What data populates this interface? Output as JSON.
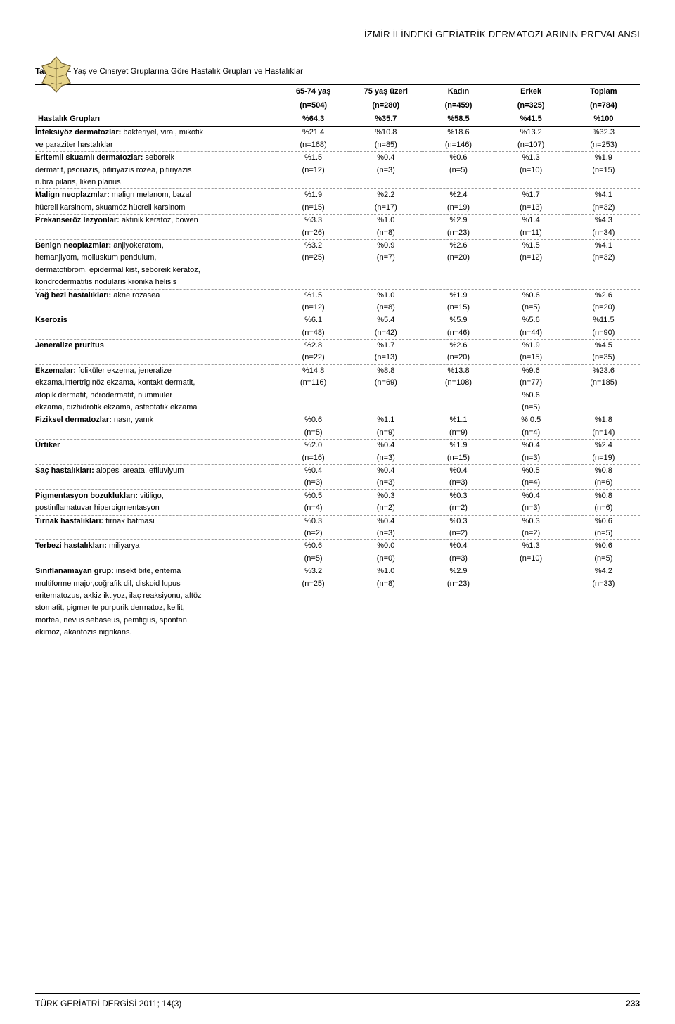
{
  "header": {
    "title": "İZMİR İLİNDEKİ GERİATRİK DERMATOZLARININ PREVALANSI"
  },
  "table": {
    "caption_label": "Tablo 1—",
    "caption_text": " Yaş ve Cinsiyet Gruplarına Göre Hastalık Grupları ve Hastalıklar",
    "columns": [
      {
        "h1": "65-74 yaş",
        "h2": "(n=504)",
        "h3": "%64.3"
      },
      {
        "h1": "75 yaş üzeri",
        "h2": "(n=280)",
        "h3": "%35.7"
      },
      {
        "h1": "Kadın",
        "h2": "(n=459)",
        "h3": "%58.5"
      },
      {
        "h1": "Erkek",
        "h2": "(n=325)",
        "h3": "%41.5"
      },
      {
        "h1": "Toplam",
        "h2": "(n=784)",
        "h3": "%100"
      }
    ],
    "rowhead_label": "Hastalık Grupları",
    "groups": [
      {
        "lines": [
          {
            "label_bold": "İnfeksiyöz dermatozlar:",
            "label_rest": " bakteriyel, viral, mikotik",
            "vals": [
              "%21.4",
              "%10.8",
              "%18.6",
              "%13.2",
              "%32.3"
            ]
          },
          {
            "label_bold": "",
            "label_rest": "ve paraziter hastalıklar",
            "vals": [
              "(n=168)",
              "(n=85)",
              "(n=146)",
              "(n=107)",
              "(n=253)"
            ]
          }
        ]
      },
      {
        "lines": [
          {
            "label_bold": "Eritemli skuamlı dermatozlar:",
            "label_rest": " seboreik",
            "vals": [
              "%1.5",
              "%0.4",
              "%0.6",
              "%1.3",
              "%1.9"
            ]
          },
          {
            "label_bold": "",
            "label_rest": "dermatit, psoriazis, pitiriyazis rozea, pitiriyazis",
            "vals": [
              "(n=12)",
              "(n=3)",
              "(n=5)",
              "(n=10)",
              "(n=15)"
            ]
          },
          {
            "label_bold": "",
            "label_rest": "rubra pilaris, liken planus",
            "vals": [
              "",
              "",
              "",
              "",
              ""
            ]
          }
        ]
      },
      {
        "lines": [
          {
            "label_bold": "Malign neoplazmlar:",
            "label_rest": " malign melanom, bazal",
            "vals": [
              "%1.9",
              "%2.2",
              "%2.4",
              "%1.7",
              "%4.1"
            ]
          },
          {
            "label_bold": "",
            "label_rest": "hücreli karsinom, skuamöz hücreli karsinom",
            "vals": [
              "(n=15)",
              "(n=17)",
              "(n=19)",
              "(n=13)",
              "(n=32)"
            ]
          }
        ]
      },
      {
        "lines": [
          {
            "label_bold": "Prekanseröz lezyonlar:",
            "label_rest": " aktinik keratoz, bowen",
            "vals": [
              "%3.3",
              "%1.0",
              "%2.9",
              "%1.4",
              "%4.3"
            ]
          },
          {
            "label_bold": "",
            "label_rest": "",
            "vals": [
              "(n=26)",
              "(n=8)",
              "(n=23)",
              "(n=11)",
              "(n=34)"
            ]
          }
        ]
      },
      {
        "lines": [
          {
            "label_bold": "Benign neoplazmlar:",
            "label_rest": " anjiyokeratom,",
            "vals": [
              "%3.2",
              "%0.9",
              "%2.6",
              "%1.5",
              "%4.1"
            ]
          },
          {
            "label_bold": "",
            "label_rest": "hemanjiyom, molluskum pendulum,",
            "vals": [
              "(n=25)",
              "(n=7)",
              "(n=20)",
              "(n=12)",
              "(n=32)"
            ]
          },
          {
            "label_bold": "",
            "label_rest": "dermatofibrom, epidermal kist, seboreik keratoz,",
            "vals": [
              "",
              "",
              "",
              "",
              ""
            ]
          },
          {
            "label_bold": "",
            "label_rest": "kondrodermatitis nodularis kronika helisis",
            "vals": [
              "",
              "",
              "",
              "",
              ""
            ]
          }
        ]
      },
      {
        "lines": [
          {
            "label_bold": "Yağ bezi hastalıkları:",
            "label_rest": " akne rozasea",
            "vals": [
              "%1.5",
              "%1.0",
              "%1.9",
              "%0.6",
              "%2.6"
            ]
          },
          {
            "label_bold": "",
            "label_rest": "",
            "vals": [
              "(n=12)",
              "(n=8)",
              "(n=15)",
              "(n=5)",
              "(n=20)"
            ]
          }
        ]
      },
      {
        "lines": [
          {
            "label_bold": "Kserozis",
            "label_rest": "",
            "vals": [
              "%6.1",
              "%5.4",
              "%5.9",
              "%5.6",
              "%11.5"
            ]
          },
          {
            "label_bold": "",
            "label_rest": "",
            "vals": [
              "(n=48)",
              "(n=42)",
              "(n=46)",
              "(n=44)",
              "(n=90)"
            ]
          }
        ]
      },
      {
        "lines": [
          {
            "label_bold": "Jeneralize pruritus",
            "label_rest": "",
            "vals": [
              "%2.8",
              "%1.7",
              "%2.6",
              "%1.9",
              "%4.5"
            ]
          },
          {
            "label_bold": "",
            "label_rest": "",
            "vals": [
              "(n=22)",
              "(n=13)",
              "(n=20)",
              "(n=15)",
              "(n=35)"
            ]
          }
        ]
      },
      {
        "lines": [
          {
            "label_bold": "Ekzemalar:",
            "label_rest": " foliküler ekzema, jeneralize",
            "vals": [
              "%14.8",
              "%8.8",
              "%13.8",
              "%9.6",
              "%23.6"
            ]
          },
          {
            "label_bold": "",
            "label_rest": "ekzama,intertriginöz ekzama, kontakt dermatit,",
            "vals": [
              "(n=116)",
              "(n=69)",
              "(n=108)",
              "(n=77)",
              "(n=185)"
            ]
          },
          {
            "label_bold": "",
            "label_rest": "atopik dermatit, nörodermatit, nummuler",
            "vals": [
              "",
              "",
              "",
              "%0.6",
              ""
            ]
          },
          {
            "label_bold": "",
            "label_rest": "ekzama, dizhidrotik ekzama, asteotatik ekzama",
            "vals": [
              "",
              "",
              "",
              "(n=5)",
              ""
            ]
          }
        ]
      },
      {
        "lines": [
          {
            "label_bold": "Fiziksel dermatozlar:",
            "label_rest": " nasır, yanık",
            "vals": [
              "%0.6",
              "%1.1",
              "%1.1",
              "% 0.5",
              "%1.8"
            ]
          },
          {
            "label_bold": "",
            "label_rest": "",
            "vals": [
              "(n=5)",
              "(n=9)",
              "(n=9)",
              "(n=4)",
              "(n=14)"
            ]
          }
        ]
      },
      {
        "lines": [
          {
            "label_bold": "Ürtiker",
            "label_rest": "",
            "vals": [
              "%2.0",
              "%0.4",
              "%1.9",
              "%0.4",
              "%2.4"
            ]
          },
          {
            "label_bold": "",
            "label_rest": "",
            "vals": [
              "(n=16)",
              "(n=3)",
              "(n=15)",
              "(n=3)",
              "(n=19)"
            ]
          }
        ]
      },
      {
        "lines": [
          {
            "label_bold": "Saç hastalıkları:",
            "label_rest": " alopesi areata, effluviyum",
            "vals": [
              "%0.4",
              "%0.4",
              "%0.4",
              "%0.5",
              "%0.8"
            ]
          },
          {
            "label_bold": "",
            "label_rest": "",
            "vals": [
              "(n=3)",
              "(n=3)",
              "(n=3)",
              "(n=4)",
              "(n=6)"
            ]
          }
        ]
      },
      {
        "lines": [
          {
            "label_bold": "Pigmentasyon bozuklukları:",
            "label_rest": " vitiligo,",
            "vals": [
              "%0.5",
              "%0.3",
              "%0.3",
              "%0.4",
              "%0.8"
            ]
          },
          {
            "label_bold": "",
            "label_rest": "postinflamatuvar hiperpigmentasyon",
            "vals": [
              "(n=4)",
              "(n=2)",
              "(n=2)",
              "(n=3)",
              "(n=6)"
            ]
          }
        ]
      },
      {
        "lines": [
          {
            "label_bold": "Tırnak hastalıkları:",
            "label_rest": " tırnak batması",
            "vals": [
              "%0.3",
              "%0.4",
              "%0.3",
              "%0.3",
              "%0.6"
            ]
          },
          {
            "label_bold": "",
            "label_rest": "",
            "vals": [
              "(n=2)",
              "(n=3)",
              "(n=2)",
              "(n=2)",
              "(n=5)"
            ]
          }
        ]
      },
      {
        "lines": [
          {
            "label_bold": "Terbezi hastalıkları:",
            "label_rest": " miliyarya",
            "vals": [
              "%0.6",
              "%0.0",
              "%0.4",
              "%1.3",
              "%0.6"
            ]
          },
          {
            "label_bold": "",
            "label_rest": "",
            "vals": [
              "(n=5)",
              "(n=0)",
              "(n=3)",
              "(n=10)",
              "(n=5)"
            ]
          }
        ]
      },
      {
        "lines": [
          {
            "label_bold": "Sınıflanamayan grup:",
            "label_rest": " insekt bite, eritema",
            "vals": [
              "%3.2",
              "%1.0",
              "%2.9",
              "",
              "%4.2"
            ]
          },
          {
            "label_bold": "",
            "label_rest": "multiforme major,coğrafik dil, diskoid lupus",
            "vals": [
              "(n=25)",
              "(n=8)",
              "(n=23)",
              "",
              "(n=33)"
            ]
          },
          {
            "label_bold": "",
            "label_rest": "eritematozus, akkiz iktiyoz, ilaç reaksiyonu, aftöz",
            "vals": [
              "",
              "",
              "",
              "",
              ""
            ]
          },
          {
            "label_bold": "",
            "label_rest": "stomatit, pigmente purpurik dermatoz, keilit,",
            "vals": [
              "",
              "",
              "",
              "",
              ""
            ]
          },
          {
            "label_bold": "",
            "label_rest": "morfea, nevus sebaseus, pemfigus, spontan",
            "vals": [
              "",
              "",
              "",
              "",
              ""
            ]
          },
          {
            "label_bold": "",
            "label_rest": "ekimoz, akantozis nigrikans.",
            "vals": [
              "",
              "",
              "",
              "",
              ""
            ]
          }
        ],
        "no_sep": true
      }
    ]
  },
  "footer": {
    "journal": "TÜRK GERİATRİ DERGİSİ 2011; 14(3)",
    "page": "233"
  },
  "style": {
    "text_color": "#000000",
    "background_color": "#ffffff",
    "dashed_color": "#999999",
    "leaf_color_light": "#e6d48a",
    "leaf_color_dark": "#6b5a2e"
  }
}
